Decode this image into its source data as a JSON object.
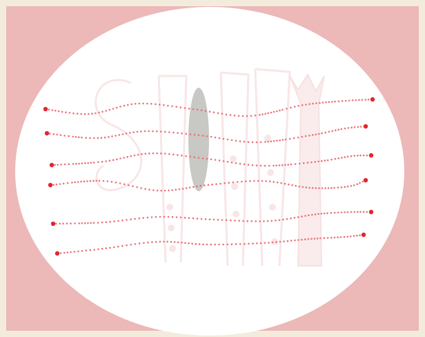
{
  "colors": {
    "frame": "#f3ecdc",
    "background": "#ecb8b8",
    "oval": "#ffffff",
    "thread": "#e8737b",
    "endpoint": "#e3262c",
    "slot": "#c8c8c4",
    "watermark": "#f3d2d3"
  },
  "game": {
    "thread_count": 6,
    "shuffle_icon": "shuffle-icon"
  }
}
